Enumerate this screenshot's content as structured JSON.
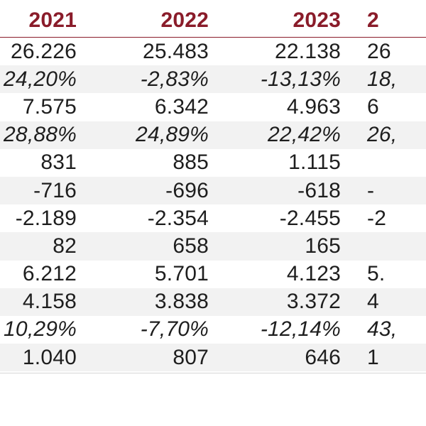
{
  "table": {
    "years": [
      "2021",
      "2022",
      "2023",
      "2"
    ],
    "rows": [
      {
        "type": "num",
        "values": [
          "26.226",
          "25.483",
          "22.138",
          "26"
        ]
      },
      {
        "type": "pct",
        "values": [
          "24,20%",
          "-2,83%",
          "-13,13%",
          "18,"
        ]
      },
      {
        "type": "num",
        "values": [
          "7.575",
          "6.342",
          "4.963",
          "6"
        ]
      },
      {
        "type": "pct",
        "values": [
          "28,88%",
          "24,89%",
          "22,42%",
          "26,"
        ]
      },
      {
        "type": "num",
        "values": [
          "831",
          "885",
          "1.115",
          ""
        ]
      },
      {
        "type": "num",
        "values": [
          "-716",
          "-696",
          "-618",
          "-"
        ]
      },
      {
        "type": "num",
        "values": [
          "-2.189",
          "-2.354",
          "-2.455",
          "-2"
        ]
      },
      {
        "type": "num",
        "values": [
          "82",
          "658",
          "165",
          ""
        ]
      },
      {
        "type": "num",
        "values": [
          "6.212",
          "5.701",
          "4.123",
          "5."
        ]
      },
      {
        "type": "num",
        "values": [
          "4.158",
          "3.838",
          "3.372",
          "4"
        ]
      },
      {
        "type": "pct",
        "values": [
          "10,29%",
          "-7,70%",
          "-12,14%",
          "43,"
        ]
      },
      {
        "type": "num",
        "values": [
          "1.040",
          "807",
          "646",
          "1"
        ]
      }
    ]
  },
  "colors": {
    "header_text": "#8a1c2a",
    "header_rule": "#8a1c2a",
    "alt_row": "#f2f2f2",
    "body_text": "#1e1e1e"
  }
}
